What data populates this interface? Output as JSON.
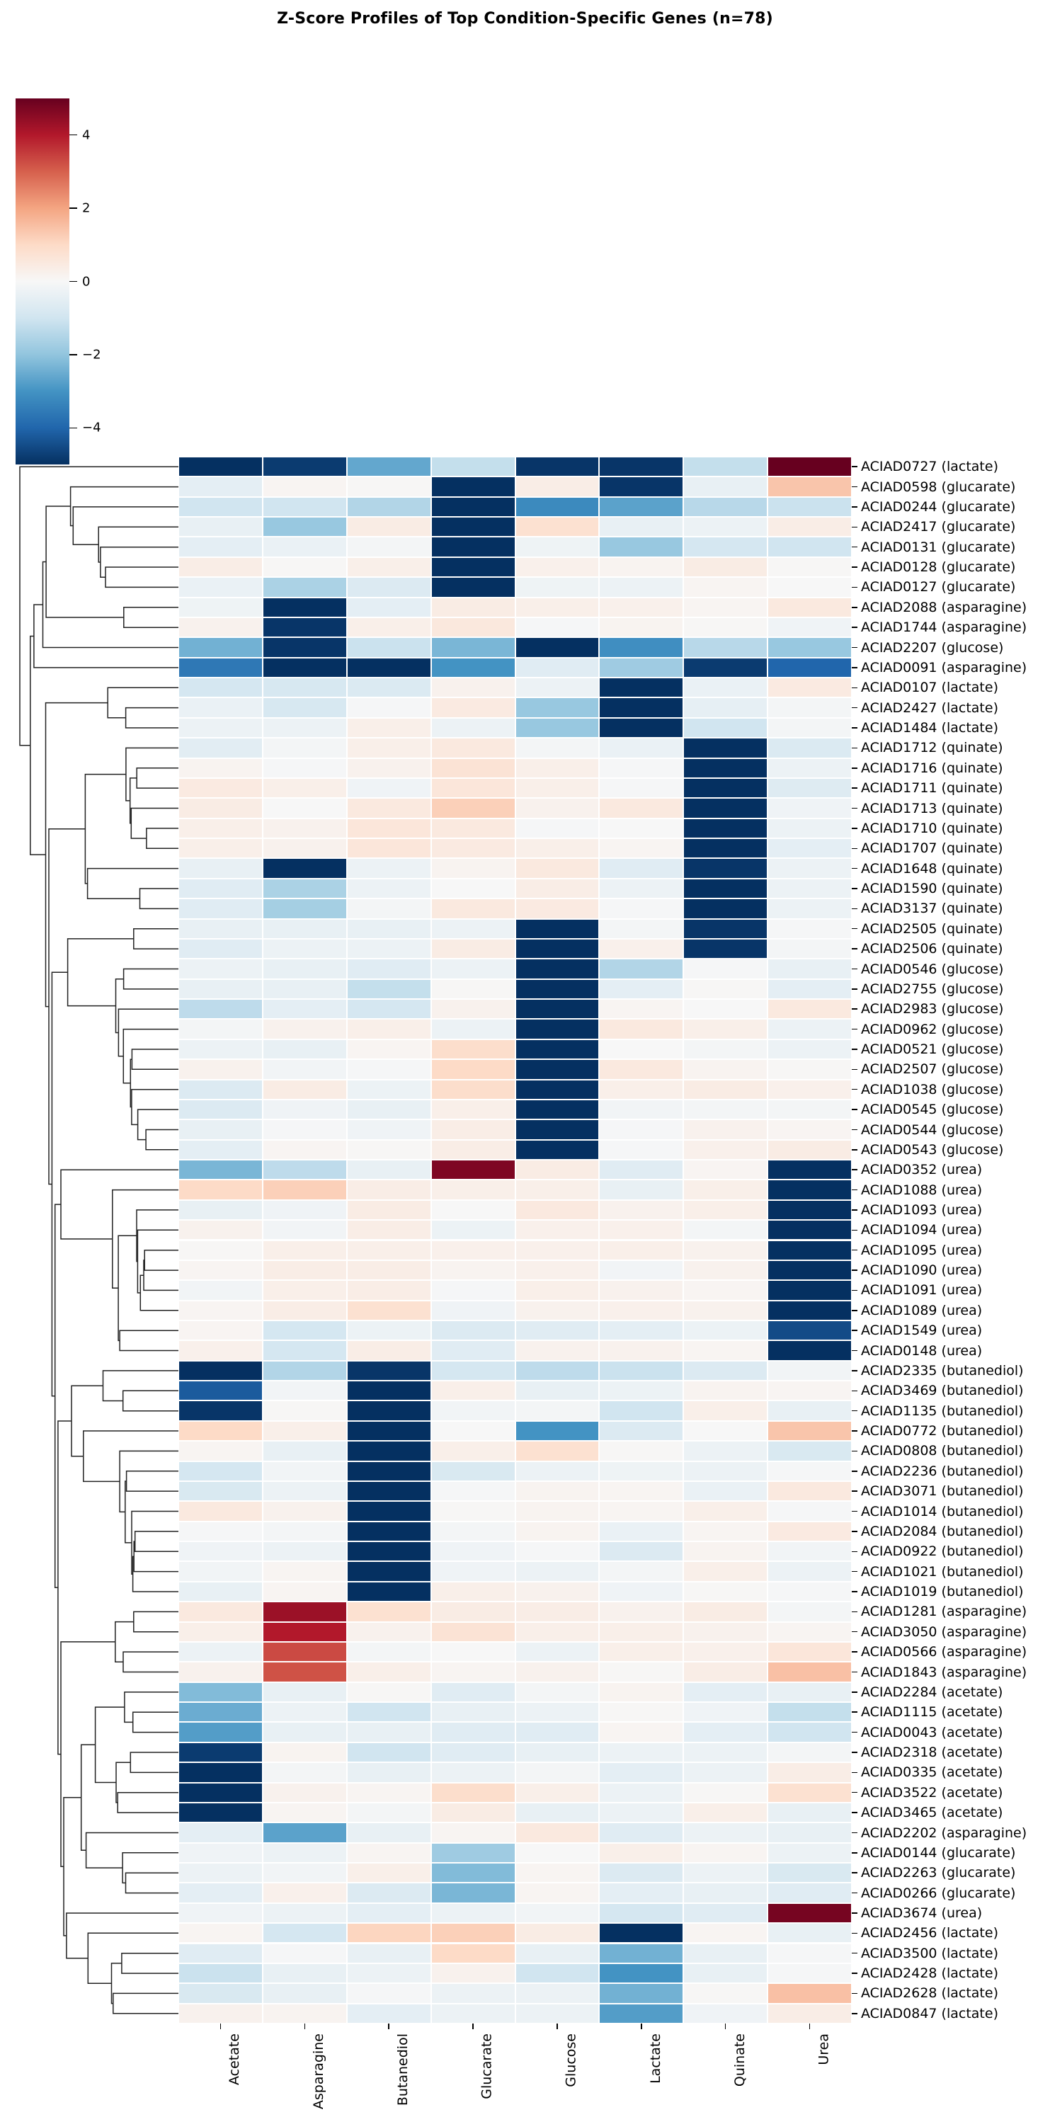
{
  "title": "Z-Score Profiles of Top Condition-Specific Genes (n=78)",
  "colorbar": {
    "vmin": -5,
    "vmax": 5,
    "tick_values": [
      4,
      2,
      0,
      -2,
      -4
    ],
    "tick_labels": [
      "4",
      "2",
      "0",
      "−2",
      "−4"
    ]
  },
  "colors": {
    "background": "#ffffff",
    "cell_gap": "#ffffff",
    "dendrogram": "#222222",
    "text": "#000000",
    "rdbu_anchors": [
      "#67001f",
      "#b2182b",
      "#d6604d",
      "#f4a582",
      "#fddbc7",
      "#f7f7f7",
      "#d1e5f0",
      "#92c5de",
      "#4393c3",
      "#2166ac",
      "#053061"
    ]
  },
  "chart_data": {
    "type": "heatmap",
    "title": "Z-Score Profiles of Top Condition-Specific Genes (n=78)",
    "colormap": "RdBu_r",
    "vmin": -5,
    "vmax": 5,
    "legend_position": "top-left colorbar",
    "row_dendrogram": "left",
    "grid": false,
    "columns": [
      "Acetate",
      "Asparagine",
      "Butanediol",
      "Glucarate",
      "Glucose",
      "Lactate",
      "Quinate",
      "Urea"
    ],
    "rows": [
      "ACIAD0727 (lactate)",
      "ACIAD0598 (glucarate)",
      "ACIAD0244 (glucarate)",
      "ACIAD2417 (glucarate)",
      "ACIAD0131 (glucarate)",
      "ACIAD0128 (glucarate)",
      "ACIAD0127 (glucarate)",
      "ACIAD2088 (asparagine)",
      "ACIAD1744 (asparagine)",
      "ACIAD2207 (glucose)",
      "ACIAD0091 (asparagine)",
      "ACIAD0107 (lactate)",
      "ACIAD2427 (lactate)",
      "ACIAD1484 (lactate)",
      "ACIAD1712 (quinate)",
      "ACIAD1716 (quinate)",
      "ACIAD1711 (quinate)",
      "ACIAD1713 (quinate)",
      "ACIAD1710 (quinate)",
      "ACIAD1707 (quinate)",
      "ACIAD1648 (quinate)",
      "ACIAD1590 (quinate)",
      "ACIAD3137 (quinate)",
      "ACIAD2505 (quinate)",
      "ACIAD2506 (quinate)",
      "ACIAD0546 (glucose)",
      "ACIAD2755 (glucose)",
      "ACIAD2983 (glucose)",
      "ACIAD0962 (glucose)",
      "ACIAD0521 (glucose)",
      "ACIAD2507 (glucose)",
      "ACIAD1038 (glucose)",
      "ACIAD0545 (glucose)",
      "ACIAD0544 (glucose)",
      "ACIAD0543 (glucose)",
      "ACIAD0352 (urea)",
      "ACIAD1088 (urea)",
      "ACIAD1093 (urea)",
      "ACIAD1094 (urea)",
      "ACIAD1095 (urea)",
      "ACIAD1090 (urea)",
      "ACIAD1091 (urea)",
      "ACIAD1089 (urea)",
      "ACIAD1549 (urea)",
      "ACIAD0148 (urea)",
      "ACIAD2335 (butanediol)",
      "ACIAD3469 (butanediol)",
      "ACIAD1135 (butanediol)",
      "ACIAD0772 (butanediol)",
      "ACIAD0808 (butanediol)",
      "ACIAD2236 (butanediol)",
      "ACIAD3071 (butanediol)",
      "ACIAD1014 (butanediol)",
      "ACIAD2084 (butanediol)",
      "ACIAD0922 (butanediol)",
      "ACIAD1021 (butanediol)",
      "ACIAD1019 (butanediol)",
      "ACIAD1281 (asparagine)",
      "ACIAD3050 (asparagine)",
      "ACIAD0566 (asparagine)",
      "ACIAD1843 (asparagine)",
      "ACIAD2284 (acetate)",
      "ACIAD1115 (acetate)",
      "ACIAD0043 (acetate)",
      "ACIAD2318 (acetate)",
      "ACIAD0335 (acetate)",
      "ACIAD3522 (acetate)",
      "ACIAD3465 (acetate)",
      "ACIAD2202 (asparagine)",
      "ACIAD0144 (glucarate)",
      "ACIAD2263 (glucarate)",
      "ACIAD0266 (glucarate)",
      "ACIAD3674 (urea)",
      "ACIAD2456 (lactate)",
      "ACIAD3500 (lactate)",
      "ACIAD2428 (lactate)",
      "ACIAD2628 (lactate)",
      "ACIAD0847 (lactate)"
    ],
    "values": [
      [
        -5.0,
        -4.8,
        -2.6,
        -1.2,
        -4.9,
        -4.9,
        -1.2,
        5.0
      ],
      [
        -0.5,
        0.1,
        0.05,
        -5.0,
        0.35,
        -4.9,
        -0.4,
        1.4
      ],
      [
        -1.0,
        -1.0,
        -1.5,
        -5.0,
        -3.2,
        -2.7,
        -1.4,
        -1.1
      ],
      [
        -0.4,
        -1.9,
        0.4,
        -5.0,
        0.8,
        -0.4,
        -0.3,
        0.35
      ],
      [
        -0.5,
        -0.35,
        -0.1,
        -5.0,
        -0.25,
        -1.9,
        -0.9,
        -1.0
      ],
      [
        0.35,
        0.05,
        0.3,
        -5.0,
        0.25,
        0.15,
        0.4,
        0.05
      ],
      [
        -0.35,
        -1.6,
        -0.7,
        -5.0,
        -0.25,
        -0.3,
        0.1,
        0.0
      ],
      [
        -0.25,
        -5.0,
        -0.5,
        0.4,
        0.3,
        0.25,
        0.1,
        0.5
      ],
      [
        0.2,
        -4.9,
        0.3,
        0.55,
        -0.05,
        0.15,
        0.05,
        -0.2
      ],
      [
        -2.4,
        -4.9,
        -1.1,
        -2.3,
        -5.0,
        -3.1,
        -1.4,
        -1.9
      ],
      [
        -3.6,
        -5.0,
        -5.0,
        -3.0,
        -0.6,
        -1.8,
        -4.8,
        -4.0
      ],
      [
        -0.9,
        -0.85,
        -0.75,
        0.2,
        -0.3,
        -5.0,
        -0.35,
        0.45
      ],
      [
        -0.35,
        -0.85,
        -0.05,
        0.45,
        -1.9,
        -5.0,
        -0.45,
        -0.1
      ],
      [
        -0.3,
        -0.3,
        0.3,
        -0.3,
        -1.9,
        -5.0,
        -1.0,
        -0.1
      ],
      [
        -0.55,
        -0.1,
        0.3,
        0.5,
        -0.1,
        -0.35,
        -5.0,
        -0.75
      ],
      [
        0.15,
        -0.05,
        0.2,
        0.7,
        0.3,
        -0.05,
        -5.0,
        -0.3
      ],
      [
        0.45,
        0.3,
        -0.2,
        0.6,
        0.3,
        -0.05,
        -5.0,
        -0.65
      ],
      [
        0.4,
        0.0,
        0.5,
        1.2,
        0.2,
        0.5,
        -5.0,
        -0.2
      ],
      [
        0.3,
        0.2,
        0.6,
        0.5,
        -0.05,
        0.0,
        -5.0,
        -0.3
      ],
      [
        0.3,
        0.2,
        0.6,
        0.45,
        0.3,
        0.1,
        -5.0,
        -0.5
      ],
      [
        -0.4,
        -5.0,
        -0.3,
        0.15,
        0.5,
        -0.6,
        -4.9,
        -0.3
      ],
      [
        -0.6,
        -1.6,
        -0.3,
        0.0,
        0.35,
        -0.3,
        -5.0,
        -0.3
      ],
      [
        -0.6,
        -1.7,
        -0.1,
        0.5,
        0.45,
        -0.05,
        -5.0,
        -0.3
      ],
      [
        -0.4,
        -0.4,
        -0.4,
        -0.3,
        -5.0,
        -0.1,
        -4.9,
        -0.05
      ],
      [
        -0.6,
        -0.3,
        -0.3,
        0.4,
        -5.0,
        0.25,
        -4.9,
        -0.1
      ],
      [
        -0.3,
        -0.4,
        -0.6,
        -0.3,
        -5.0,
        -1.5,
        -0.05,
        -0.4
      ],
      [
        -0.4,
        -0.4,
        -1.2,
        0.05,
        -5.0,
        -0.5,
        0.05,
        -0.5
      ],
      [
        -1.3,
        -0.5,
        -0.9,
        0.2,
        -5.0,
        0.1,
        0.0,
        0.5
      ],
      [
        -0.1,
        0.2,
        0.3,
        -0.3,
        -5.0,
        0.5,
        0.3,
        -0.3
      ],
      [
        -0.3,
        -0.4,
        0.1,
        0.9,
        -5.0,
        0.0,
        -0.1,
        -0.3
      ],
      [
        0.2,
        -0.15,
        -0.05,
        1.0,
        -5.0,
        0.5,
        0.15,
        0.05
      ],
      [
        -0.7,
        0.4,
        -0.3,
        0.9,
        -5.0,
        0.3,
        0.4,
        0.25
      ],
      [
        -0.7,
        -0.2,
        -0.4,
        0.3,
        -5.0,
        -0.15,
        -0.1,
        -0.1
      ],
      [
        -0.4,
        -0.05,
        -0.2,
        0.35,
        -5.0,
        -0.05,
        0.2,
        0.1
      ],
      [
        -0.5,
        0.1,
        0.05,
        0.35,
        -5.0,
        -0.05,
        0.25,
        0.4
      ],
      [
        -2.3,
        -1.3,
        -0.4,
        4.7,
        0.4,
        -0.6,
        0.1,
        -5.0
      ],
      [
        1.0,
        1.2,
        0.35,
        0.3,
        0.3,
        -0.4,
        0.3,
        -5.0
      ],
      [
        -0.4,
        -0.2,
        0.4,
        0.0,
        0.5,
        0.2,
        0.3,
        -5.0
      ],
      [
        0.2,
        -0.15,
        0.35,
        -0.3,
        0.25,
        0.25,
        -0.1,
        -5.0
      ],
      [
        0.05,
        0.3,
        0.3,
        0.25,
        0.25,
        0.3,
        0.2,
        -5.0
      ],
      [
        0.1,
        0.35,
        0.35,
        0.15,
        0.25,
        -0.15,
        0.2,
        -5.0
      ],
      [
        -0.15,
        0.3,
        0.35,
        -0.05,
        0.3,
        0.2,
        0.1,
        -5.0
      ],
      [
        0.1,
        0.35,
        0.8,
        -0.2,
        0.2,
        0.25,
        0.2,
        -5.0
      ],
      [
        0.1,
        -0.9,
        -0.3,
        -0.7,
        -0.6,
        -0.5,
        -0.3,
        -4.5
      ],
      [
        0.25,
        -0.9,
        0.35,
        -0.6,
        0.2,
        0.2,
        0.1,
        -5.0
      ],
      [
        -5.0,
        -1.5,
        -4.9,
        -0.9,
        -1.3,
        -1.1,
        -0.7,
        -0.15
      ],
      [
        -4.2,
        -0.15,
        -5.0,
        0.3,
        -0.4,
        -0.3,
        0.15,
        0.1
      ],
      [
        -4.9,
        0.05,
        -5.0,
        -0.15,
        -0.1,
        -1.0,
        0.3,
        -0.4
      ],
      [
        1.0,
        0.3,
        -5.0,
        0.0,
        -3.0,
        -0.7,
        0.0,
        1.4
      ],
      [
        0.1,
        -0.4,
        -5.0,
        0.3,
        0.8,
        0.05,
        -0.3,
        -0.8
      ],
      [
        -0.9,
        -0.15,
        -5.0,
        -0.8,
        -0.3,
        -0.25,
        -0.3,
        -0.05
      ],
      [
        -0.8,
        -0.3,
        -5.0,
        -0.05,
        0.15,
        0.1,
        -0.35,
        0.5
      ],
      [
        0.5,
        0.2,
        -5.0,
        0.05,
        0.15,
        0.1,
        0.3,
        -0.05
      ],
      [
        -0.05,
        -0.1,
        -5.0,
        -0.1,
        0.15,
        -0.35,
        0.1,
        0.45
      ],
      [
        -0.2,
        -0.3,
        -5.0,
        -0.2,
        -0.05,
        -0.7,
        0.15,
        -0.15
      ],
      [
        -0.15,
        0.1,
        -5.0,
        -0.2,
        -0.3,
        -0.1,
        0.3,
        -0.3
      ],
      [
        -0.4,
        0.1,
        -5.0,
        0.3,
        0.2,
        -0.2,
        0.05,
        -0.05
      ],
      [
        0.5,
        4.3,
        0.8,
        0.4,
        0.35,
        0.2,
        0.4,
        -0.1
      ],
      [
        0.3,
        4.0,
        0.2,
        0.7,
        0.3,
        0.3,
        0.2,
        0.1
      ],
      [
        -0.3,
        3.3,
        -0.1,
        0.0,
        -0.3,
        0.3,
        0.25,
        0.6
      ],
      [
        0.2,
        3.2,
        0.3,
        0.1,
        0.2,
        0.05,
        0.35,
        1.5
      ],
      [
        -2.2,
        -0.4,
        0.05,
        -0.6,
        -0.1,
        0.15,
        -0.5,
        -0.4
      ],
      [
        -2.5,
        -0.3,
        -1.0,
        -0.4,
        -0.3,
        0.05,
        -0.2,
        -1.2
      ],
      [
        -2.8,
        -0.4,
        -0.4,
        -0.6,
        -0.6,
        0.1,
        -0.5,
        -1.0
      ],
      [
        -4.8,
        0.15,
        -1.0,
        -0.6,
        -0.4,
        -0.3,
        -0.3,
        -0.1
      ],
      [
        -5.0,
        -0.1,
        -0.4,
        -0.3,
        -0.1,
        -0.5,
        -0.3,
        0.35
      ],
      [
        -5.0,
        0.2,
        0.1,
        0.9,
        0.3,
        -0.3,
        0.05,
        0.8
      ],
      [
        -5.0,
        0.1,
        -0.1,
        0.4,
        -0.4,
        -0.3,
        0.3,
        -0.4
      ],
      [
        -0.5,
        -2.7,
        -0.4,
        0.1,
        0.5,
        -0.6,
        -0.3,
        -0.4
      ],
      [
        -0.2,
        -0.3,
        0.1,
        -1.8,
        0.0,
        0.3,
        0.1,
        -0.3
      ],
      [
        -0.3,
        -0.15,
        0.3,
        -2.2,
        0.1,
        -0.7,
        -0.3,
        -0.8
      ],
      [
        -0.5,
        0.25,
        -0.7,
        -2.3,
        0.1,
        -0.5,
        -0.4,
        -0.6
      ],
      [
        -0.2,
        -0.3,
        -0.5,
        -0.3,
        -0.15,
        -0.9,
        -0.6,
        4.8
      ],
      [
        0.1,
        -0.9,
        1.1,
        1.2,
        0.4,
        -5.0,
        0.1,
        -0.4
      ],
      [
        -0.6,
        -0.05,
        -0.4,
        1.0,
        -0.4,
        -2.4,
        -0.4,
        -0.05
      ],
      [
        -1.1,
        -0.4,
        -0.3,
        0.2,
        -1.0,
        -3.0,
        -0.4,
        -0.05
      ],
      [
        -0.8,
        -0.4,
        -0.05,
        -0.3,
        -0.3,
        -2.4,
        0.05,
        1.5
      ],
      [
        0.2,
        0.15,
        -0.5,
        -0.3,
        -0.3,
        -2.8,
        -0.2,
        0.35
      ]
    ]
  }
}
